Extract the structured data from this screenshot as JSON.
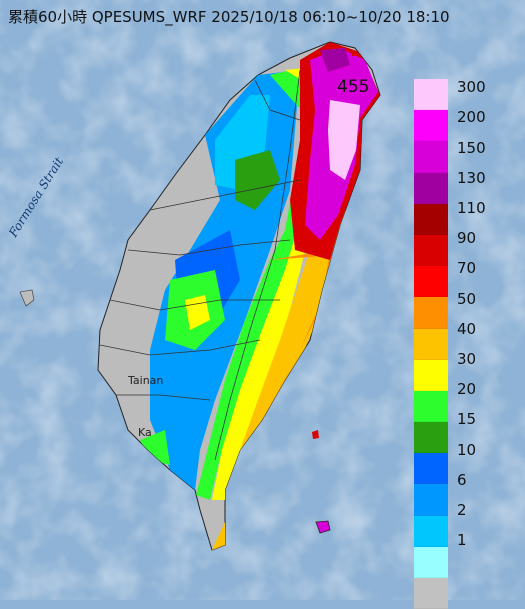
{
  "title": "累積60小時 QPESUMS_WRF 2025/10/18 06:10~10/20 18:10",
  "max_value": "455",
  "place_labels": {
    "strait": "Formosa Strait",
    "tainan": "Tainan",
    "kaohsiung": "Ka"
  },
  "legend": {
    "levels": [
      "300",
      "200",
      "150",
      "130",
      "110",
      "90",
      "70",
      "50",
      "40",
      "30",
      "20",
      "15",
      "10",
      "6",
      "2",
      "1"
    ],
    "colors": [
      "#fdc9fd",
      "#fc00fc",
      "#d800d8",
      "#a000a0",
      "#a40000",
      "#d80000",
      "#fe0000",
      "#fe8f00",
      "#fec300",
      "#fefe00",
      "#2dfd2d",
      "#2a9f10",
      "#0065fe",
      "#0098fe",
      "#00c6fe",
      "#99feff",
      "#c1c1c1"
    ]
  },
  "colors": {
    "sea": "#8fb3d6",
    "land_dry": "#bcbcbc"
  }
}
